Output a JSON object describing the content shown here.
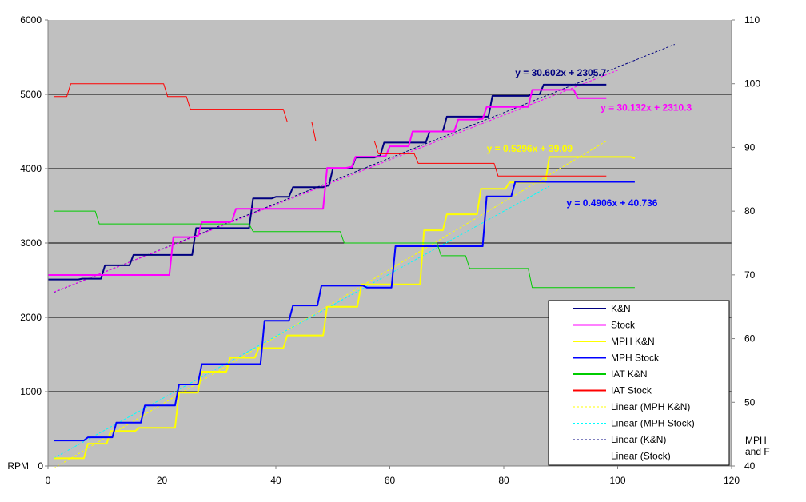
{
  "chart_data": {
    "type": "line",
    "title": "",
    "xlabel": "",
    "ylabel_left": "RPM",
    "ylabel_right": "MPH and F",
    "xlim": [
      0,
      120
    ],
    "x_ticks": [
      0,
      20,
      40,
      60,
      80,
      100,
      120
    ],
    "ylim_left": [
      0,
      6000
    ],
    "y_left_ticks": [
      0,
      1000,
      2000,
      3000,
      4000,
      5000,
      6000
    ],
    "ylim_right": [
      40,
      110
    ],
    "y_right_ticks": [
      40,
      50,
      60,
      70,
      80,
      90,
      100,
      110
    ],
    "grid": true,
    "legend_position": "bottom-right",
    "colors": {
      "plot_bg": "#c0c0c0",
      "kn": "#000080",
      "stock": "#ff00ff",
      "mph_kn": "#ffff00",
      "mph_stock": "#0000ff",
      "iat_kn": "#00cc00",
      "iat_stock": "#ff0000",
      "lin_mph_kn": "#ffff00",
      "lin_mph_stock": "#00ffff",
      "lin_kn": "#000080",
      "lin_stock": "#ff00ff"
    },
    "series": [
      {
        "name": "K&N",
        "axis": "left",
        "key": "kn",
        "style": "solid",
        "steps": [
          [
            0,
            2510
          ],
          [
            6,
            2520
          ],
          [
            10,
            2700
          ],
          [
            15,
            2840
          ],
          [
            22,
            2840
          ],
          [
            26,
            3200
          ],
          [
            31,
            3200
          ],
          [
            36,
            3600
          ],
          [
            40,
            3620
          ],
          [
            43,
            3750
          ],
          [
            49,
            3770
          ],
          [
            50,
            4000
          ],
          [
            54,
            4150
          ],
          [
            58,
            4170
          ],
          [
            59,
            4350
          ],
          [
            65,
            4350
          ],
          [
            67,
            4500
          ],
          [
            70,
            4700
          ],
          [
            75,
            4700
          ],
          [
            78,
            4980
          ],
          [
            85,
            5000
          ],
          [
            87,
            5130
          ],
          [
            98,
            5130
          ]
        ]
      },
      {
        "name": "Stock",
        "axis": "left",
        "key": "stock",
        "style": "solid",
        "steps": [
          [
            0,
            2570
          ],
          [
            21,
            2570
          ],
          [
            22,
            3080
          ],
          [
            26,
            3090
          ],
          [
            27,
            3280
          ],
          [
            32,
            3290
          ],
          [
            33,
            3460
          ],
          [
            48,
            3460
          ],
          [
            49,
            4010
          ],
          [
            53,
            4020
          ],
          [
            54,
            4160
          ],
          [
            59,
            4170
          ],
          [
            60,
            4300
          ],
          [
            63,
            4300
          ],
          [
            64,
            4500
          ],
          [
            71,
            4500
          ],
          [
            72,
            4660
          ],
          [
            76,
            4670
          ],
          [
            77,
            4830
          ],
          [
            84,
            4830
          ],
          [
            85,
            5060
          ],
          [
            92,
            5060
          ],
          [
            93,
            4950
          ],
          [
            98,
            4950
          ]
        ]
      },
      {
        "name": "MPH K&N",
        "axis": "right",
        "key": "mph_kn",
        "style": "solid",
        "steps": [
          [
            1,
            41.2
          ],
          [
            6,
            41.2
          ],
          [
            7,
            43.5
          ],
          [
            10,
            43.5
          ],
          [
            11,
            45.5
          ],
          [
            15,
            45.5
          ],
          [
            16,
            46.0
          ],
          [
            21,
            46.0
          ],
          [
            23,
            51.5
          ],
          [
            26,
            51.5
          ],
          [
            27,
            54.8
          ],
          [
            31,
            54.8
          ],
          [
            32,
            57.0
          ],
          [
            36,
            57.0
          ],
          [
            37,
            58.5
          ],
          [
            41,
            58.5
          ],
          [
            42,
            60.5
          ],
          [
            48,
            60.5
          ],
          [
            49,
            65.0
          ],
          [
            54,
            65.0
          ],
          [
            55,
            68.5
          ],
          [
            64,
            68.5
          ],
          [
            66,
            77.0
          ],
          [
            69,
            77.0
          ],
          [
            70,
            79.5
          ],
          [
            75,
            79.5
          ],
          [
            76,
            83.5
          ],
          [
            80,
            83.5
          ],
          [
            81,
            84.5
          ],
          [
            86,
            84.5
          ],
          [
            88,
            88.5
          ],
          [
            103,
            88.3
          ]
        ]
      },
      {
        "name": "MPH Stock",
        "axis": "right",
        "key": "mph_stock",
        "style": "solid",
        "steps": [
          [
            1,
            44.0
          ],
          [
            6,
            44.0
          ],
          [
            7,
            44.5
          ],
          [
            11,
            44.5
          ],
          [
            12,
            46.8
          ],
          [
            16,
            46.8
          ],
          [
            17,
            49.5
          ],
          [
            22,
            49.5
          ],
          [
            23,
            52.8
          ],
          [
            26,
            52.8
          ],
          [
            27,
            56.0
          ],
          [
            37,
            56.0
          ],
          [
            38,
            62.8
          ],
          [
            42,
            62.8
          ],
          [
            43,
            65.2
          ],
          [
            47,
            65.2
          ],
          [
            48,
            68.3
          ],
          [
            55,
            68.3
          ],
          [
            56,
            68.0
          ],
          [
            60,
            68.0
          ],
          [
            61,
            74.5
          ],
          [
            76,
            74.5
          ],
          [
            77,
            82.3
          ],
          [
            81,
            82.3
          ],
          [
            82,
            84.6
          ],
          [
            103,
            84.6
          ]
        ]
      },
      {
        "name": "IAT K&N",
        "axis": "right",
        "key": "iat_kn",
        "style": "solid",
        "steps": [
          [
            1,
            80
          ],
          [
            7,
            80
          ],
          [
            9,
            78
          ],
          [
            35,
            78
          ],
          [
            36,
            76.8
          ],
          [
            51,
            76.8
          ],
          [
            52,
            75
          ],
          [
            68,
            75
          ],
          [
            69,
            73
          ],
          [
            73,
            73
          ],
          [
            74,
            71
          ],
          [
            84,
            71
          ],
          [
            85,
            68
          ],
          [
            103,
            68
          ]
        ]
      },
      {
        "name": "IAT Stock",
        "axis": "right",
        "key": "iat_stock",
        "style": "solid",
        "steps": [
          [
            1,
            98
          ],
          [
            3,
            98
          ],
          [
            4,
            100
          ],
          [
            20,
            100
          ],
          [
            21,
            98
          ],
          [
            24,
            98
          ],
          [
            25,
            96
          ],
          [
            41,
            96
          ],
          [
            42,
            94
          ],
          [
            46,
            94
          ],
          [
            47,
            91
          ],
          [
            57,
            91
          ],
          [
            58,
            89
          ],
          [
            64,
            89
          ],
          [
            65,
            87.5
          ],
          [
            78,
            87.5
          ],
          [
            79,
            85.5
          ],
          [
            98,
            85.5
          ]
        ]
      },
      {
        "name": "Linear (MPH K&N)",
        "axis": "right",
        "key": "lin_mph_kn",
        "style": "dashed",
        "slope": 0.5296,
        "intercept": 39.09,
        "x_range": [
          1,
          98
        ]
      },
      {
        "name": "Linear (MPH Stock)",
        "axis": "right",
        "key": "lin_mph_stock",
        "style": "dashed",
        "slope": 0.4906,
        "intercept": 40.736,
        "x_range": [
          1,
          88
        ]
      },
      {
        "name": "Linear (K&N)",
        "axis": "left",
        "key": "lin_kn",
        "style": "dashed",
        "slope": 30.602,
        "intercept": 2305.7,
        "x_range": [
          1,
          110
        ]
      },
      {
        "name": "Linear (Stock)",
        "axis": "left",
        "key": "lin_stock",
        "style": "dashed",
        "slope": 30.132,
        "intercept": 2310.3,
        "x_range": [
          1,
          100
        ]
      }
    ],
    "annotations": [
      {
        "text": "y = 30.602x + 2305.7",
        "color": "#000080",
        "anchor": [
          82,
          5250
        ],
        "axis": "left"
      },
      {
        "text": "y = 30.132x + 2310.3",
        "color": "#ff00ff",
        "anchor": [
          97,
          4780
        ],
        "axis": "left"
      },
      {
        "text": "y = 0.5296x + 39.09",
        "color": "#ffff00",
        "anchor": [
          77,
          89.3
        ],
        "axis": "right"
      },
      {
        "text": "y = 0.4906x + 40.736",
        "color": "#0000ff",
        "anchor": [
          91,
          80.8
        ],
        "axis": "right"
      }
    ]
  }
}
